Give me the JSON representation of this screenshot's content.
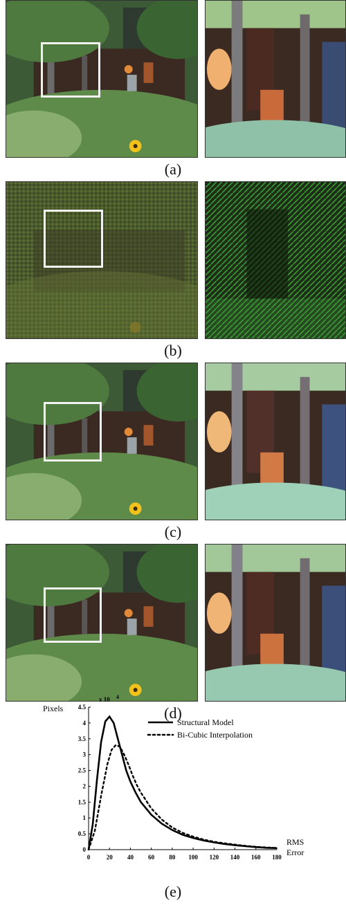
{
  "figure": {
    "captions": [
      "(a)",
      "(b)",
      "(c)",
      "(d)",
      "(e)"
    ]
  },
  "palette": {
    "foliage_dark": "#2f4a2c",
    "foliage_mid": "#4f7a3f",
    "foliage_light": "#9fc58a",
    "building": "#3a2a22",
    "warm_light": "#e08a3a",
    "mosaic_green": "#4a5a2c",
    "flower": "#f2c21a",
    "selection": "#f2f2f2"
  },
  "chart_data": {
    "type": "line",
    "ylabel": "Pixels",
    "y_multiplier": "x 10",
    "y_exponent": "4",
    "xlabel_line1": "RMS",
    "xlabel_line2": "Error",
    "xlim": [
      0,
      180
    ],
    "ylim": [
      0,
      4.5
    ],
    "x_ticks": [
      0,
      20,
      40,
      60,
      80,
      100,
      120,
      140,
      160,
      180
    ],
    "y_ticks": [
      0,
      0.5,
      1,
      1.5,
      2,
      2.5,
      3,
      3.5,
      4,
      4.5
    ],
    "grid": false,
    "legend_position": "top-right",
    "series": [
      {
        "name": "Structural Model",
        "style": "solid",
        "x": [
          0,
          4,
          8,
          12,
          16,
          20,
          24,
          28,
          32,
          36,
          40,
          45,
          50,
          60,
          70,
          80,
          90,
          100,
          110,
          120,
          130,
          140,
          150,
          160,
          170,
          180
        ],
        "y": [
          0,
          0.8,
          2.2,
          3.4,
          4.05,
          4.2,
          4.0,
          3.5,
          3.0,
          2.5,
          2.15,
          1.8,
          1.5,
          1.1,
          0.82,
          0.62,
          0.47,
          0.37,
          0.29,
          0.23,
          0.18,
          0.14,
          0.11,
          0.08,
          0.06,
          0.05
        ]
      },
      {
        "name": "Bi-Cubic Interpolation",
        "style": "dotted",
        "x": [
          0,
          6,
          12,
          18,
          22,
          26,
          30,
          34,
          38,
          42,
          46,
          50,
          60,
          70,
          80,
          90,
          100,
          110,
          120,
          130,
          140,
          150,
          160,
          170,
          180
        ],
        "y": [
          0,
          0.6,
          1.7,
          2.7,
          3.15,
          3.3,
          3.25,
          3.0,
          2.7,
          2.35,
          2.05,
          1.8,
          1.3,
          0.95,
          0.7,
          0.53,
          0.41,
          0.32,
          0.25,
          0.2,
          0.16,
          0.12,
          0.09,
          0.07,
          0.05
        ]
      }
    ]
  }
}
